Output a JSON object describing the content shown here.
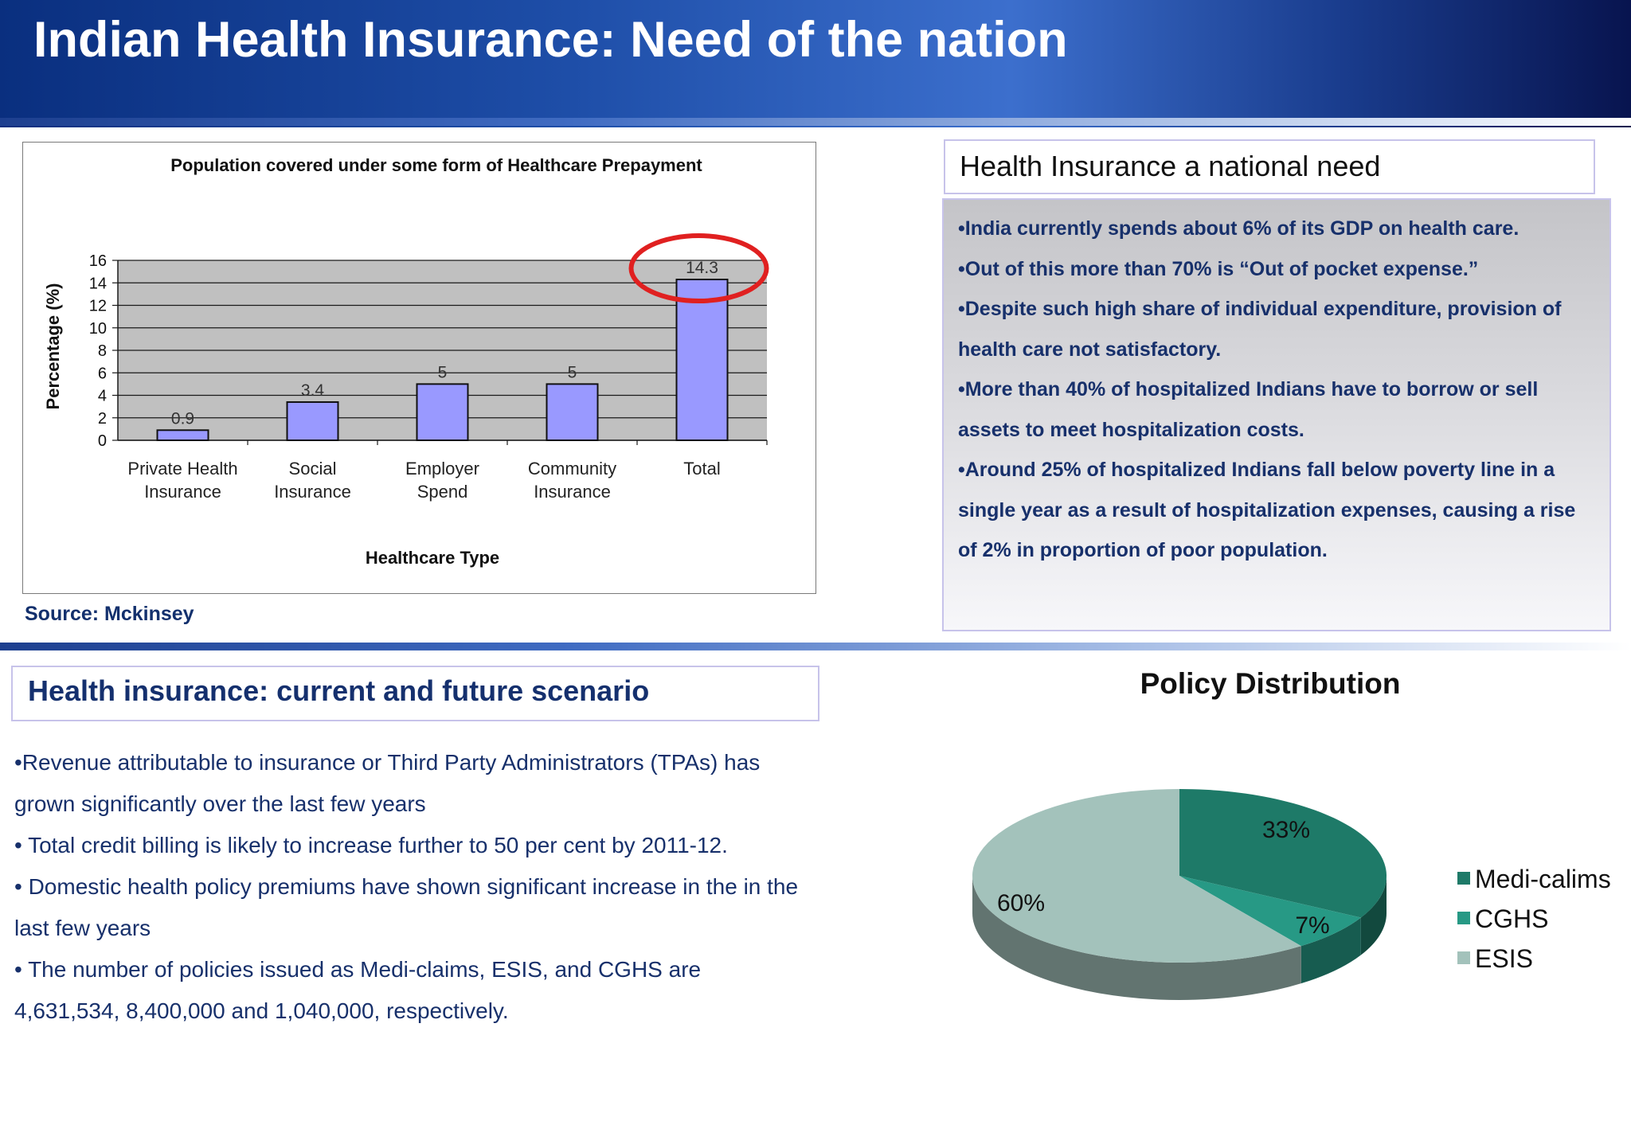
{
  "header": {
    "title": "Indian Health Insurance: Need of the nation"
  },
  "chart_data": [
    {
      "type": "bar",
      "title": "Population covered under some form of Healthcare Prepayment",
      "xlabel": "Healthcare Type",
      "ylabel": "Percentage (%)",
      "ylim": [
        0,
        16
      ],
      "yticks": [
        0,
        2,
        4,
        6,
        8,
        10,
        12,
        14,
        16
      ],
      "categories": [
        [
          "Private Health",
          "Insurance"
        ],
        [
          "Social",
          "Insurance"
        ],
        [
          "Employer",
          "Spend"
        ],
        [
          "Community",
          "Insurance"
        ],
        [
          "Total"
        ]
      ],
      "values": [
        0.9,
        3.4,
        5,
        5,
        14.3
      ],
      "data_labels": [
        "0.9",
        "3.4",
        "5",
        "5",
        "14.3"
      ],
      "grid": true,
      "bar_color": "#9999ff",
      "plot_bg": "#c0c0c0",
      "highlight_color": "#e02020",
      "highlight_index": 4
    },
    {
      "type": "pie",
      "title": "Policy Distribution",
      "labels": [
        "Medi-calims",
        "CGHS",
        "ESIS"
      ],
      "values": [
        33,
        7,
        60
      ],
      "data_labels": [
        "33%",
        "7%",
        "60%"
      ],
      "colors": [
        "#1e7a68",
        "#279985",
        "#a3c2bb"
      ],
      "legend": "right"
    }
  ],
  "source": "Source: Mckinsey",
  "need": {
    "title": "Health Insurance a national need",
    "bullets": [
      "•India currently spends about 6% of its GDP on health care.",
      "•Out of this more than 70% is “Out of pocket expense.”",
      "•Despite such high share of individual expenditure, provision of health care not satisfactory.",
      "•More than 40% of hospitalized Indians have to borrow or sell assets to meet  hospitalization costs.",
      "•Around 25% of hospitalized Indians fall below poverty line in a single year as a result of hospitalization expenses, causing a rise of 2% in proportion of poor population."
    ]
  },
  "scenario": {
    "title": "Health insurance: current and future scenario",
    "bullets": [
      "•Revenue attributable to insurance or Third Party Administrators (TPAs) has grown significantly over the last few years",
      "• Total credit billing is likely to increase further to 50 per cent by 2011-12.",
      "• Domestic health policy premiums have shown significant increase in the in the last few years",
      "• The number of policies issued as Medi-claims, ESIS, and CGHS are 4,631,534, 8,400,000 and 1,040,000, respectively."
    ]
  }
}
